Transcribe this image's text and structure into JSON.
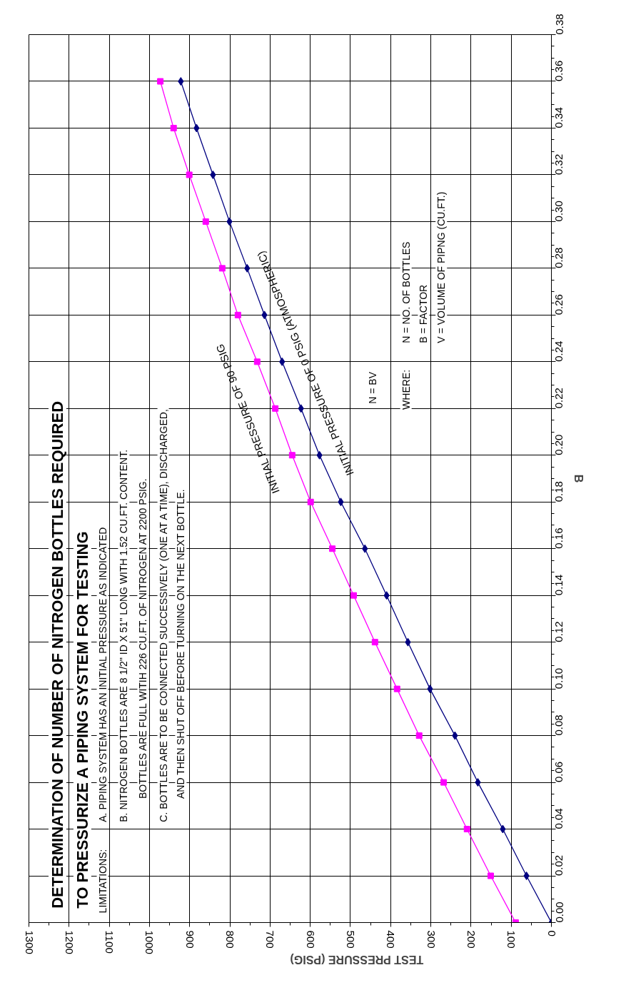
{
  "chart_data": {
    "type": "line",
    "title": "DETERMINATION OF NUMBER OF NITROGEN BOTTLES REQUIRED\nTO PRESSURIZE A PIPING SYSTEM FOR TESTING",
    "xlabel": "TEST PRESSURE (PSIG)",
    "ylabel": "B",
    "annotations": [
      "LIMITATIONS:",
      "A.   PIPING SYSTEM HAS AN INITIAL PRESSURE AS INDICATED",
      "B.   NITROGEN BOTTLES ARE 8 1/2\" ID X 51\" LONG WITH 1.52 CU.FT. CONTENT.",
      "BOTTLES ARE  FULL WITIH 226 CU.FT. OF NITROGEN AT 2200 PSIG.",
      "C.   BOTTLES ARE  TO BE CONNECTED SUCCESSIVELY (ONE AT A TIME), DISCHARGED,",
      "AND THEN SHUT OFF BEFORE TURNING ON THE NEXT BOTTLE.",
      "N = BV",
      "WHERE:",
      "N = NO. OF BOTTLES",
      "B = FACTOR",
      "V = VOLUME OF PIPNG (CU.FT.)"
    ],
    "series": [
      {
        "name": "INITIAL PRESSURE OF 0 PSIG (ATMOSPHERIC)",
        "color": "#000080",
        "marker": "diamond",
        "x": [
          0,
          62,
          121,
          183,
          240,
          302,
          357,
          410,
          464,
          524,
          577,
          623,
          670,
          714,
          757,
          801,
          842,
          883,
          922
        ],
        "values": [
          0,
          0.02,
          0.04,
          0.06,
          0.08,
          0.1,
          0.12,
          0.14,
          0.16,
          0.18,
          0.2,
          0.22,
          0.24,
          0.26,
          0.28,
          0.3,
          0.32,
          0.34,
          0.36
        ]
      },
      {
        "name": "INITIAL PRESSURE OF 90 PSIG",
        "color": "#ff00ff",
        "marker": "square",
        "x": [
          89,
          151,
          210,
          268,
          329,
          384,
          439,
          492,
          545,
          599,
          645,
          687,
          732,
          780,
          819,
          860,
          901,
          940,
          973
        ],
        "values": [
          0,
          0.02,
          0.04,
          0.06,
          0.08,
          0.1,
          0.12,
          0.14,
          0.16,
          0.18,
          0.2,
          0.22,
          0.24,
          0.26,
          0.28,
          0.3,
          0.32,
          0.34,
          0.36
        ]
      }
    ],
    "ylim": [
      0,
      0.38
    ],
    "yticks": [
      {
        "value": 0,
        "label": "0.00"
      },
      {
        "value": 0.02,
        "label": "0.02"
      },
      {
        "value": 0.04,
        "label": "0.04"
      },
      {
        "value": 0.06,
        "label": "0.06"
      },
      {
        "value": 0.08,
        "label": "0.08"
      },
      {
        "value": 0.1,
        "label": "0.10"
      },
      {
        "value": 0.12,
        "label": "0.12"
      },
      {
        "value": 0.14,
        "label": "0.14"
      },
      {
        "value": 0.16,
        "label": "0.16"
      },
      {
        "value": 0.18,
        "label": "0.18"
      },
      {
        "value": 0.2,
        "label": "0.20"
      },
      {
        "value": 0.22,
        "label": "0.22"
      },
      {
        "value": 0.24,
        "label": "0.24"
      },
      {
        "value": 0.26,
        "label": "0.26"
      },
      {
        "value": 0.28,
        "label": "0.28"
      },
      {
        "value": 0.3,
        "label": "0.30"
      },
      {
        "value": 0.32,
        "label": "0.32"
      },
      {
        "value": 0.34,
        "label": "0.34"
      },
      {
        "value": 0.36,
        "label": "0.36"
      },
      {
        "value": 0.38,
        "label": "0.38"
      }
    ],
    "xlim": [
      1300,
      0
    ],
    "xticks": [
      0,
      100,
      200,
      300,
      400,
      500,
      600,
      700,
      800,
      900,
      1000,
      1100,
      1200,
      1300
    ],
    "grid": true
  }
}
